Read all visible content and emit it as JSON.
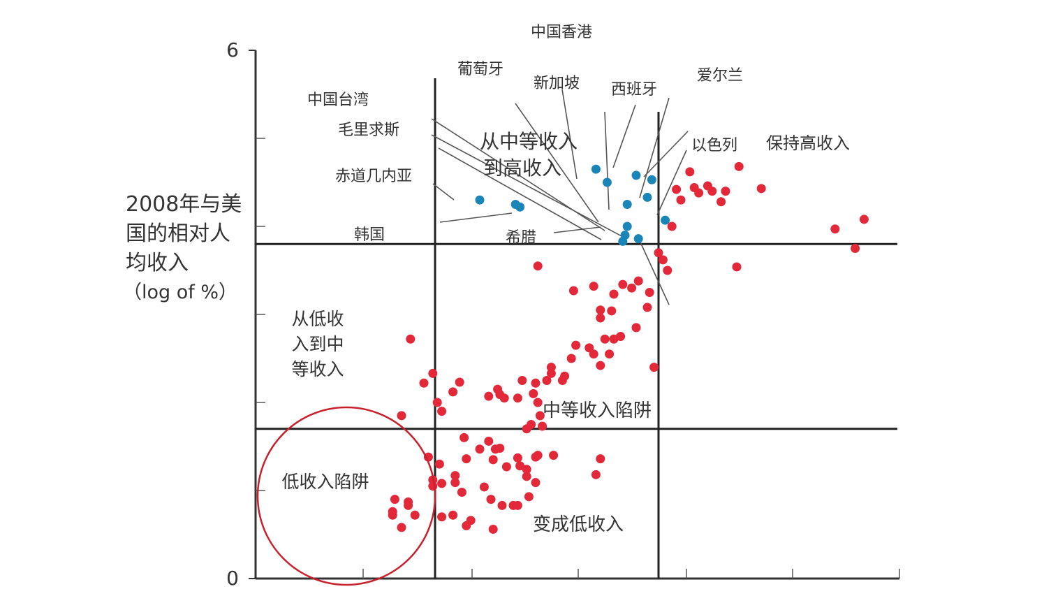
{
  "chart_data": {
    "type": "scatter",
    "title": "",
    "ylabel_lines": [
      "2008年与美",
      "国的相对人",
      "均收入",
      "（log of %）"
    ],
    "xlabel": "",
    "ylim": [
      0,
      6
    ],
    "y_ticks": [
      {
        "value": 0,
        "label": "0"
      },
      {
        "value": 6,
        "label": "6"
      }
    ],
    "minor_tick_values": [
      1,
      2,
      3,
      4,
      5
    ],
    "threshold": 3.8,
    "threshold_low": 1.7,
    "quadrant_labels": {
      "stay_high": "保持高收入",
      "middle_to_high": [
        "从中等收入",
        "到高收入"
      ],
      "low_to_middle": [
        "从低收",
        "入到中",
        "等收入"
      ],
      "middle_trap": "中等收入陷阱",
      "low_trap": "低收入陷阱",
      "became_low": "变成低收入"
    },
    "country_labels": [
      {
        "name": "中国香港"
      },
      {
        "name": "葡萄牙"
      },
      {
        "name": "新加坡"
      },
      {
        "name": "西班牙"
      },
      {
        "name": "爱尔兰"
      },
      {
        "name": "中国台湾"
      },
      {
        "name": "毛里求斯"
      },
      {
        "name": "以色列"
      },
      {
        "name": "赤道几内亚"
      },
      {
        "name": "韩国"
      },
      {
        "name": "希腊"
      }
    ],
    "series": [
      {
        "group": "middle_to_high",
        "color": "#1a86b8",
        "points": [
          [
            0.2,
            4.3
          ],
          [
            0.36,
            4.25
          ],
          [
            0.38,
            4.22
          ],
          [
            0.77,
            4.5
          ],
          [
            0.86,
            4.25
          ],
          [
            0.86,
            4.0
          ],
          [
            0.9,
            4.58
          ],
          [
            0.85,
            3.9
          ],
          [
            0.84,
            3.83
          ],
          [
            0.91,
            3.86
          ],
          [
            0.95,
            4.33
          ],
          [
            0.97,
            4.53
          ],
          [
            1.03,
            4.07
          ],
          [
            0.72,
            4.65
          ]
        ]
      },
      {
        "group": "stay_high",
        "color": "#e3283a",
        "points": [
          [
            1.1,
            4.3
          ],
          [
            1.08,
            4.42
          ],
          [
            1.18,
            4.38
          ],
          [
            1.24,
            4.4
          ],
          [
            1.14,
            4.62
          ],
          [
            1.22,
            4.46
          ],
          [
            1.16,
            4.44
          ],
          [
            1.28,
            4.28
          ],
          [
            1.3,
            4.4
          ],
          [
            1.36,
            4.68
          ],
          [
            1.46,
            4.43
          ],
          [
            1.79,
            3.97
          ],
          [
            1.92,
            4.08
          ],
          [
            1.88,
            3.75
          ],
          [
            1.06,
            4.0
          ],
          [
            1.35,
            3.54
          ],
          [
            1.04,
            3.5
          ],
          [
            1.02,
            3.62
          ],
          [
            1.0,
            3.7
          ]
        ]
      },
      {
        "group": "middle_trap",
        "color": "#e3283a",
        "points": [
          [
            0.46,
            3.55
          ],
          [
            0.62,
            3.27
          ],
          [
            0.71,
            3.32
          ],
          [
            0.84,
            3.34
          ],
          [
            0.88,
            3.3
          ],
          [
            0.96,
            3.25
          ],
          [
            0.91,
            3.38
          ],
          [
            0.8,
            3.23
          ],
          [
            0.74,
            3.05
          ],
          [
            0.79,
            3.04
          ],
          [
            0.95,
            3.08
          ],
          [
            0.74,
            2.96
          ],
          [
            0.9,
            2.85
          ],
          [
            0.83,
            2.75
          ],
          [
            0.8,
            2.72
          ],
          [
            0.76,
            2.72
          ],
          [
            0.63,
            2.65
          ],
          [
            0.69,
            2.62
          ],
          [
            0.71,
            2.55
          ],
          [
            0.98,
            2.4
          ],
          [
            0.78,
            2.55
          ],
          [
            0.74,
            2.42
          ],
          [
            0.61,
            2.5
          ],
          [
            0.58,
            2.3
          ],
          [
            0.52,
            2.4
          ],
          [
            0.57,
            2.25
          ],
          [
            0.46,
            2.0
          ],
          [
            0.45,
            2.22
          ],
          [
            0.39,
            2.25
          ],
          [
            0.44,
            2.1
          ],
          [
            0.37,
            2.05
          ],
          [
            0.31,
            2.05
          ],
          [
            0.29,
            2.09
          ],
          [
            0.28,
            2.15
          ],
          [
            0.24,
            2.07
          ],
          [
            0.11,
            2.23
          ],
          [
            0.08,
            2.12
          ],
          [
            0.01,
            2.0
          ],
          [
            0.03,
            1.9
          ],
          [
            0.47,
            1.85
          ],
          [
            0.43,
            1.75
          ],
          [
            0.48,
            1.73
          ],
          [
            0.41,
            1.7
          ],
          [
            -0.11,
            2.72
          ],
          [
            -0.05,
            2.22
          ],
          [
            -0.01,
            2.33
          ],
          [
            -0.15,
            1.85
          ],
          [
            0.52,
            2.33
          ],
          [
            0.5,
            2.25
          ]
        ]
      },
      {
        "group": "became_low",
        "color": "#e3283a",
        "points": [
          [
            0.13,
            1.6
          ],
          [
            0.24,
            1.56
          ],
          [
            0.2,
            1.47
          ],
          [
            0.27,
            1.47
          ],
          [
            0.29,
            1.48
          ],
          [
            0.14,
            1.36
          ],
          [
            0.26,
            1.35
          ],
          [
            0.37,
            1.37
          ],
          [
            0.45,
            1.38
          ],
          [
            0.32,
            1.27
          ],
          [
            0.46,
            1.4
          ],
          [
            0.53,
            1.4
          ],
          [
            0.02,
            1.3
          ],
          [
            0.09,
            1.17
          ],
          [
            0.09,
            1.09
          ],
          [
            0.22,
            1.04
          ],
          [
            0.38,
            1.28
          ],
          [
            0.41,
            1.16
          ],
          [
            0.41,
            1.24
          ],
          [
            0.45,
            1.09
          ],
          [
            0.12,
            0.98
          ],
          [
            0.25,
            0.9
          ],
          [
            0.3,
            0.83
          ],
          [
            0.37,
            0.83
          ],
          [
            0.35,
            0.83
          ],
          [
            0.42,
            0.93
          ],
          [
            0.08,
            0.72
          ],
          [
            0.16,
            0.66
          ],
          [
            0.14,
            0.6
          ],
          [
            0.26,
            0.56
          ],
          [
            0.03,
            0.7
          ],
          [
            0.03,
            1.08
          ],
          [
            0.72,
            1.18
          ],
          [
            0.74,
            1.36
          ]
        ]
      },
      {
        "group": "low_trap",
        "color": "#e3283a",
        "points": [
          [
            -0.18,
            0.9
          ],
          [
            -0.12,
            0.87
          ],
          [
            -0.19,
            0.76
          ],
          [
            -0.12,
            0.83
          ],
          [
            -0.09,
            0.72
          ],
          [
            -0.15,
            0.58
          ],
          [
            -0.19,
            0.72
          ],
          [
            -0.01,
            1.12
          ],
          [
            -0.03,
            1.38
          ],
          [
            -0.01,
            1.05
          ]
        ]
      }
    ]
  }
}
